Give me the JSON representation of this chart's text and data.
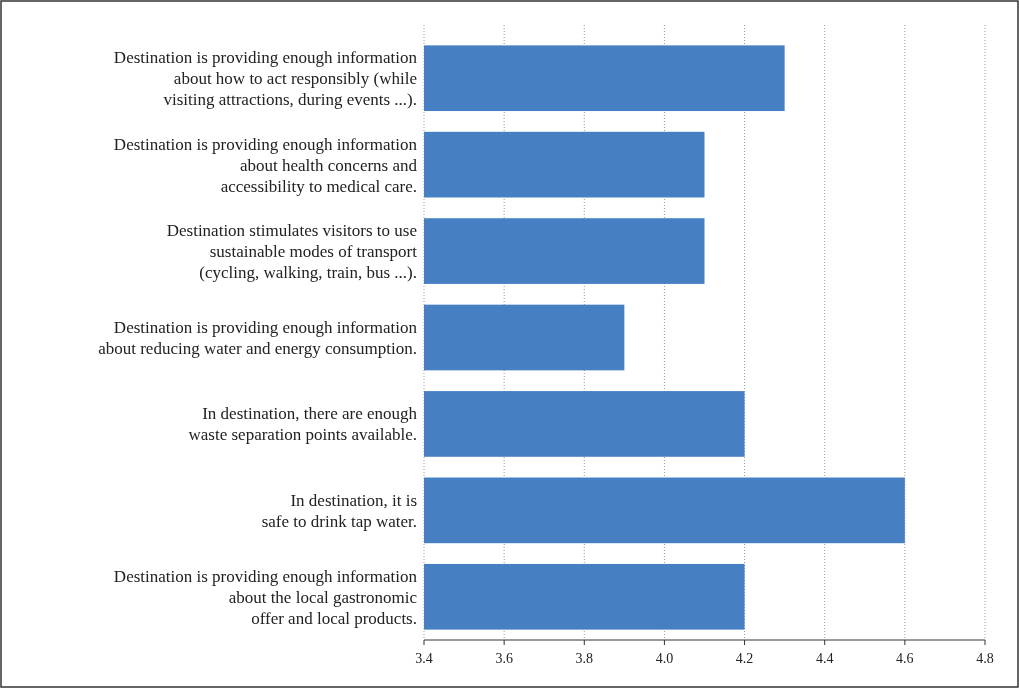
{
  "chart_data": {
    "type": "bar",
    "orientation": "horizontal",
    "categories": [
      "Destination is providing enough information\nabout how to act responsibly (while\nvisiting attractions, during events ...).",
      "Destination is providing enough information\nabout health concerns and\naccessibility to medical care.",
      "Destination stimulates visitors to use\nsustainable modes of transport\n(cycling, walking, train, bus ...).",
      "Destination is providing enough information\nabout reducing water and energy consumption.",
      "In destination, there are enough\nwaste separation points available.",
      "In destination, it is\nsafe to drink tap water.",
      "Destination is providing enough information\nabout the local gastronomic\noffer and local products."
    ],
    "values": [
      4.3,
      4.1,
      4.1,
      3.9,
      4.2,
      4.6,
      4.2
    ],
    "color": "#4680c2",
    "xlim": [
      3.4,
      4.8
    ],
    "xticks": [
      {
        "value": 3.4,
        "label": "3.4"
      },
      {
        "value": 3.6,
        "label": "3.6"
      },
      {
        "value": 3.8,
        "label": "3.8"
      },
      {
        "value": 4.0,
        "label": "4.0"
      },
      {
        "value": 4.2,
        "label": "4.2"
      },
      {
        "value": 4.4,
        "label": "4.4"
      },
      {
        "value": 4.6,
        "label": "4.6"
      },
      {
        "value": 4.8,
        "label": "4.8"
      }
    ],
    "grid": "x"
  }
}
